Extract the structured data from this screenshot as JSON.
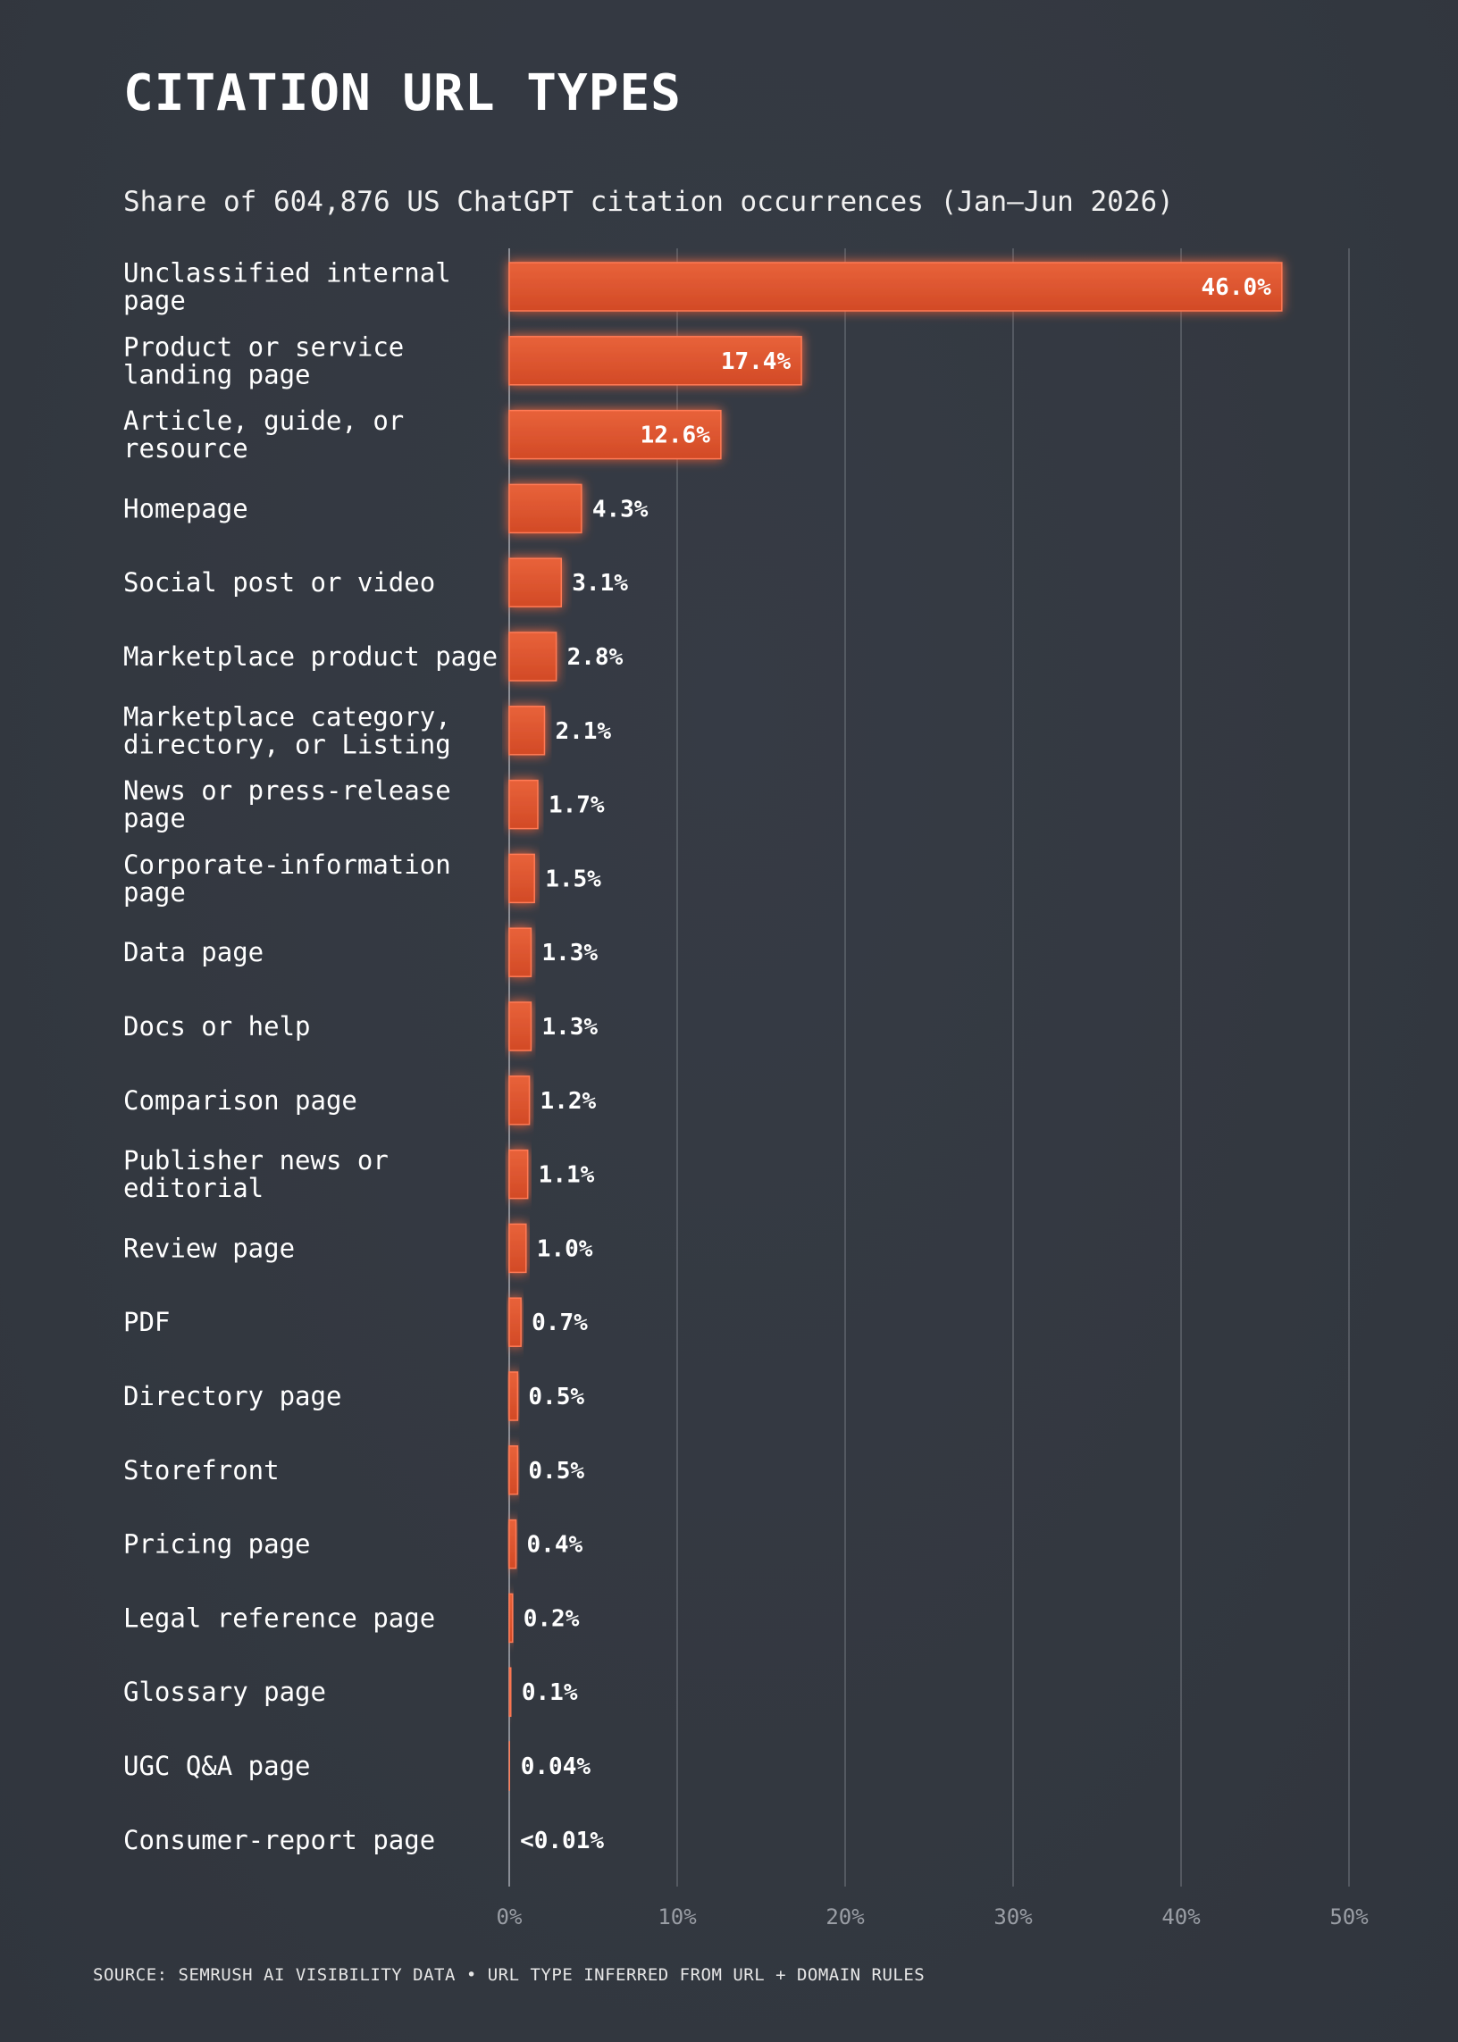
{
  "title": "CITATION URL TYPES",
  "subtitle": "Share of 604,876 US ChatGPT citation occurrences (Jan–Jun 2026)",
  "source": "SOURCE: SEMRUSH AI VISIBILITY DATA  •  URL TYPE INFERRED FROM URL + DOMAIN RULES",
  "colors": {
    "background": "#343942",
    "bar": "#e0552f",
    "bar_glow": "#ff5a28",
    "grid": "#5f646c",
    "axis_tick": "#9a9ea5",
    "text": "#ffffff"
  },
  "chart_data": {
    "type": "bar",
    "orientation": "horizontal",
    "title": "CITATION URL TYPES",
    "subtitle": "Share of 604,876 US ChatGPT citation occurrences (Jan–Jun 2026)",
    "xlabel": "",
    "ylabel": "",
    "xlim": [
      0,
      50
    ],
    "grid": true,
    "x_ticks": [
      0,
      10,
      20,
      30,
      40,
      50
    ],
    "x_tick_labels": [
      "0%",
      "10%",
      "20%",
      "30%",
      "40%",
      "50%"
    ],
    "categories": [
      [
        "Unclassified internal",
        "page"
      ],
      [
        "Product or service",
        "landing page"
      ],
      [
        "Article, guide, or",
        "resource"
      ],
      [
        "Homepage"
      ],
      [
        "Social post or video"
      ],
      [
        "Marketplace product page"
      ],
      [
        "Marketplace category,",
        "directory, or Listing"
      ],
      [
        "News or press-release",
        "page"
      ],
      [
        "Corporate-information",
        "page"
      ],
      [
        "Data page"
      ],
      [
        "Docs or help"
      ],
      [
        "Comparison page"
      ],
      [
        "Publisher news or",
        "editorial"
      ],
      [
        "Review page"
      ],
      [
        "PDF"
      ],
      [
        "Directory page"
      ],
      [
        "Storefront"
      ],
      [
        "Pricing page"
      ],
      [
        "Legal reference page"
      ],
      [
        "Glossary page"
      ],
      [
        "UGC Q&A page"
      ],
      [
        "Consumer-report page"
      ]
    ],
    "values": [
      46.0,
      17.4,
      12.6,
      4.3,
      3.1,
      2.8,
      2.1,
      1.7,
      1.5,
      1.3,
      1.3,
      1.2,
      1.1,
      1.0,
      0.7,
      0.5,
      0.5,
      0.4,
      0.2,
      0.1,
      0.04,
      0.005
    ],
    "value_labels": [
      "46.0%",
      "17.4%",
      "12.6%",
      "4.3%",
      "3.1%",
      "2.8%",
      "2.1%",
      "1.7%",
      "1.5%",
      "1.3%",
      "1.3%",
      "1.2%",
      "1.1%",
      "1.0%",
      "0.7%",
      "0.5%",
      "0.5%",
      "0.4%",
      "0.2%",
      "0.1%",
      "0.04%",
      "<0.01%"
    ]
  }
}
